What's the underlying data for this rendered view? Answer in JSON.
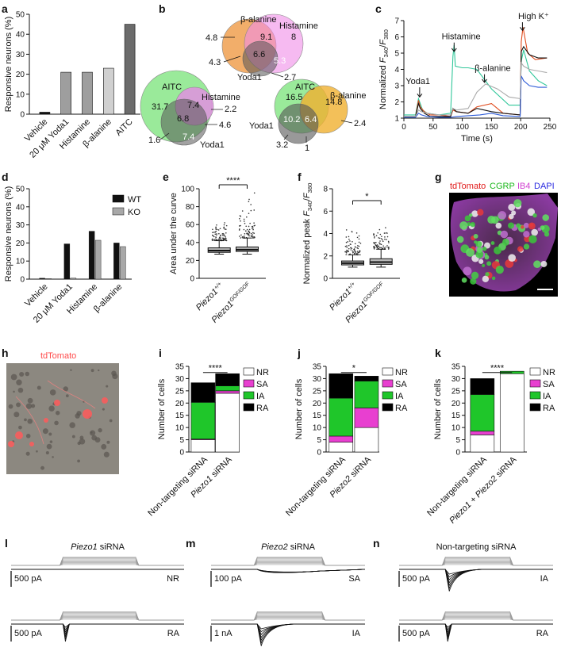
{
  "panel_letters": [
    "a",
    "b",
    "c",
    "d",
    "e",
    "f",
    "g",
    "h",
    "i",
    "j",
    "k",
    "l",
    "m",
    "n"
  ],
  "chart_data": [
    {
      "id": "a",
      "type": "bar",
      "ylabel": "Responsive neurons (%)",
      "ylim": [
        0,
        50
      ],
      "yticks": [
        "0",
        "10",
        "20",
        "30",
        "40",
        "50"
      ],
      "categories": [
        "Vehicle",
        "20 μM Yoda1",
        "Histamine",
        "β-alanine",
        "AITC"
      ],
      "values": [
        1,
        21,
        21,
        23,
        45
      ],
      "colors": [
        "#111111",
        "#9e9e9e",
        "#9e9e9e",
        "#d0d0d0",
        "#6b6b6b"
      ]
    },
    {
      "id": "b",
      "type": "venn",
      "diagrams": [
        {
          "labels": [
            "β-alanine",
            "Histamine",
            "Yoda1"
          ],
          "values": [
            "9.1",
            "8",
            "6.6",
            "5.3",
            "4.8",
            "4.3",
            "2.7"
          ]
        },
        {
          "labels": [
            "AITC",
            "Histamine",
            "Yoda1"
          ],
          "values": [
            "31.7",
            "7.4",
            "2.2",
            "6.8",
            "4.6",
            "7.4",
            "1.6"
          ]
        },
        {
          "labels": [
            "AITC",
            "β-alanine",
            "Yoda1"
          ],
          "values": [
            "16.5",
            "14.8",
            "10.2",
            "6.4",
            "2.4",
            "3.2",
            "1"
          ]
        }
      ]
    },
    {
      "id": "c",
      "type": "line",
      "xlabel": "Time (s)",
      "ylabel_parts": [
        "Normalized ",
        "F",
        "340",
        "/",
        "F",
        "380"
      ],
      "xlim": [
        0,
        250
      ],
      "ylim": [
        1,
        7
      ],
      "xticks": [
        "0",
        "50",
        "100",
        "150",
        "200",
        "250"
      ],
      "yticks": [
        "1",
        "2",
        "3",
        "4",
        "5",
        "6",
        "7"
      ],
      "annotations": [
        "Yoda1",
        "Histamine",
        "β-alanine",
        "High K⁺"
      ],
      "series": [
        {
          "color": "#31c79a",
          "x": [
            0,
            20,
            25,
            28,
            32,
            40,
            60,
            80,
            84,
            86,
            88,
            100,
            110,
            125,
            150,
            180,
            199,
            201,
            205,
            215,
            230,
            245
          ],
          "y": [
            1.2,
            1.2,
            2.2,
            1.9,
            1.5,
            1.3,
            1.2,
            1.3,
            4.8,
            5.5,
            4.2,
            4.1,
            4.1,
            4.0,
            2.8,
            1.8,
            1.8,
            4.5,
            5.2,
            3.9,
            3.3,
            3.0
          ]
        },
        {
          "color": "#e04a1c",
          "x": [
            0,
            20,
            25,
            28,
            35,
            45,
            60,
            80,
            84,
            90,
            110,
            125,
            150,
            170,
            199,
            201,
            204,
            212,
            225,
            245
          ],
          "y": [
            1.1,
            1.1,
            2.1,
            1.7,
            1.4,
            1.2,
            1.2,
            1.1,
            1.5,
            1.4,
            1.3,
            1.7,
            1.9,
            1.3,
            1.2,
            5.7,
            6.6,
            5.0,
            4.6,
            4.7
          ]
        },
        {
          "color": "#111111",
          "x": [
            0,
            20,
            25,
            28,
            35,
            45,
            60,
            80,
            84,
            90,
            110,
            125,
            150,
            170,
            199,
            201,
            205,
            215,
            230,
            245
          ],
          "y": [
            1.1,
            1.1,
            1.9,
            1.6,
            1.3,
            1.1,
            1.1,
            1.1,
            1.6,
            1.4,
            1.3,
            1.6,
            1.4,
            1.3,
            1.2,
            5.1,
            5.4,
            4.9,
            4.7,
            4.7
          ]
        },
        {
          "color": "#2d5bd8",
          "x": [
            0,
            20,
            25,
            30,
            40,
            60,
            80,
            90,
            110,
            130,
            150,
            170,
            199,
            201,
            205,
            215,
            230,
            245
          ],
          "y": [
            1.05,
            1.05,
            1.3,
            1.2,
            1.1,
            1.05,
            1.05,
            1.1,
            1.15,
            1.2,
            1.3,
            1.15,
            1.1,
            3.6,
            3.3,
            3.0,
            2.9,
            2.9
          ]
        },
        {
          "color": "#aaaaaa",
          "x": [
            0,
            20,
            25,
            30,
            40,
            60,
            80,
            84,
            90,
            110,
            125,
            140,
            160,
            180,
            199,
            201,
            205,
            215,
            230,
            245
          ],
          "y": [
            1.1,
            1.1,
            1.5,
            1.4,
            1.3,
            1.2,
            1.2,
            1.6,
            1.5,
            1.6,
            2.6,
            3.1,
            2.8,
            2.3,
            2.2,
            4.4,
            4.2,
            4.0,
            3.9,
            3.8
          ]
        }
      ]
    },
    {
      "id": "d",
      "type": "bar",
      "ylabel": "Responsive neurons (%)",
      "ylim": [
        0,
        50
      ],
      "yticks": [
        "0",
        "10",
        "20",
        "30",
        "40",
        "50"
      ],
      "categories": [
        "Vehicle",
        "20 μM Yoda1",
        "Histamine",
        "β-alanine"
      ],
      "series": [
        {
          "name": "WT",
          "color": "#111111",
          "values": [
            0.5,
            19.5,
            26.5,
            20
          ]
        },
        {
          "name": "KO",
          "color": "#a8a8a8",
          "values": [
            0.3,
            0.6,
            21.5,
            18
          ]
        }
      ]
    },
    {
      "id": "e",
      "type": "box",
      "ylabel": "Area under the curve",
      "ylim": [
        0,
        100
      ],
      "yticks": [
        "0",
        "20",
        "40",
        "60",
        "80",
        "100"
      ],
      "groups": [
        {
          "name": "Piezo1",
          "sup": "+/+",
          "whisker_low": 27,
          "q1": 29,
          "median": 31,
          "q3": 34,
          "whisker_high": 42,
          "outliers_max": 68
        },
        {
          "name": "Piezo1",
          "sup": "GOF/GOF",
          "whisker_low": 27,
          "q1": 30,
          "median": 32,
          "q3": 35,
          "whisker_high": 45,
          "outliers_max": 96
        }
      ],
      "significance": "****"
    },
    {
      "id": "f",
      "type": "box",
      "ylabel_parts": [
        "Normalized peak ",
        "F",
        "340",
        "/",
        "F",
        "380"
      ],
      "ylim": [
        0,
        8
      ],
      "yticks": [
        "0",
        "2",
        "4",
        "6",
        "8"
      ],
      "groups": [
        {
          "name": "Piezo1",
          "sup": "+/+",
          "whisker_low": 1.0,
          "q1": 1.2,
          "median": 1.35,
          "q3": 1.55,
          "whisker_high": 2.1,
          "outliers_max": 5.2
        },
        {
          "name": "Piezo1",
          "sup": "GOF/GOF",
          "whisker_low": 1.0,
          "q1": 1.25,
          "median": 1.45,
          "q3": 1.75,
          "whisker_high": 2.6,
          "outliers_max": 4.6
        }
      ],
      "significance": "*"
    },
    {
      "id": "i",
      "type": "bar",
      "ylabel": "Number of cells",
      "ylim": [
        0,
        35
      ],
      "yticks": [
        "0",
        "5",
        "10",
        "15",
        "20",
        "25",
        "30",
        "35"
      ],
      "categories": [
        "Non-targeting siRNA",
        "Piezo1 siRNA"
      ],
      "category_italic": [
        "",
        "Piezo1"
      ],
      "series": [
        {
          "name": "NR",
          "color": "#ffffff",
          "values": [
            5,
            24
          ]
        },
        {
          "name": "SA",
          "color": "#e83fd0",
          "values": [
            0.3,
            1
          ]
        },
        {
          "name": "IA",
          "color": "#1fc62a",
          "values": [
            15,
            2
          ]
        },
        {
          "name": "RA",
          "color": "#000000",
          "values": [
            8,
            5
          ]
        }
      ],
      "significance": "****"
    },
    {
      "id": "j",
      "type": "bar",
      "ylabel": "Number of cells",
      "ylim": [
        0,
        35
      ],
      "yticks": [
        "0",
        "5",
        "10",
        "15",
        "20",
        "25",
        "30",
        "35"
      ],
      "categories": [
        "Non-targeting siRNA",
        "Piezo2 siRNA"
      ],
      "category_italic": [
        "",
        "Piezo2"
      ],
      "series": [
        {
          "name": "NR",
          "color": "#ffffff",
          "values": [
            4,
            10
          ]
        },
        {
          "name": "SA",
          "color": "#e83fd0",
          "values": [
            2.5,
            8
          ]
        },
        {
          "name": "IA",
          "color": "#1fc62a",
          "values": [
            15.5,
            11
          ]
        },
        {
          "name": "RA",
          "color": "#000000",
          "values": [
            10,
            2
          ]
        }
      ],
      "significance": "*"
    },
    {
      "id": "k",
      "type": "bar",
      "ylabel": "Number of cells",
      "ylim": [
        0,
        35
      ],
      "yticks": [
        "0",
        "5",
        "10",
        "15",
        "20",
        "25",
        "30",
        "35"
      ],
      "categories": [
        "Non-targeting siRNA",
        "Piezo1 + Piezo2 siRNA"
      ],
      "category_italic": [
        "",
        "Piezo1 + Piezo2"
      ],
      "series": [
        {
          "name": "NR",
          "color": "#ffffff",
          "values": [
            7,
            32
          ]
        },
        {
          "name": "SA",
          "color": "#e83fd0",
          "values": [
            1.5,
            0
          ]
        },
        {
          "name": "IA",
          "color": "#1fc62a",
          "values": [
            15,
            1
          ]
        },
        {
          "name": "RA",
          "color": "#000000",
          "values": [
            6.5,
            0
          ]
        }
      ],
      "significance": "****"
    }
  ],
  "panel_g": {
    "legend": [
      {
        "text": "tdTomato",
        "color": "#e01818"
      },
      {
        "text": "CGRP",
        "color": "#1eb81e"
      },
      {
        "text": "IB4",
        "color": "#d040d0"
      },
      {
        "text": "DAPI",
        "color": "#2a2ae0"
      }
    ]
  },
  "panel_h": {
    "label": "tdTomato",
    "label_color": "#ff4a4a"
  },
  "ephys": {
    "l": {
      "title_italic": "Piezo1",
      "title_rest": " siRNA",
      "traces": [
        {
          "scale": "500 pA",
          "type": "NR"
        },
        {
          "scale": "500 pA",
          "type": "RA"
        }
      ]
    },
    "m": {
      "title_italic": "Piezo2",
      "title_rest": " siRNA",
      "traces": [
        {
          "scale": "100 pA",
          "type": "SA"
        },
        {
          "scale": "1 nA",
          "type": "IA"
        }
      ]
    },
    "n": {
      "title_italic": "",
      "title_rest": "Non-targeting siRNA",
      "traces": [
        {
          "scale": "500 pA",
          "type": "IA"
        },
        {
          "scale": "500 pA",
          "type": "RA"
        }
      ]
    }
  }
}
